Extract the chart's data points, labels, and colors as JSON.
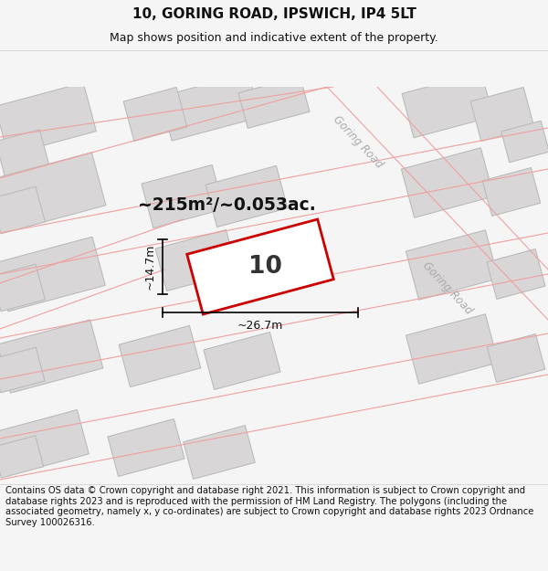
{
  "title": "10, GORING ROAD, IPSWICH, IP4 5LT",
  "subtitle": "Map shows position and indicative extent of the property.",
  "area_text": "~215m²/~0.053ac.",
  "property_number": "10",
  "width_label": "~26.7m",
  "height_label": "~14.7m",
  "road_label_top": "Goring Road",
  "road_label_bottom": "Goring Road",
  "footer_text": "Contains OS data © Crown copyright and database right 2021. This information is subject to Crown copyright and database rights 2023 and is reproduced with the permission of HM Land Registry. The polygons (including the associated geometry, namely x, y co-ordinates) are subject to Crown copyright and database rights 2023 Ordnance Survey 100026316.",
  "bg_color": "#f5f5f5",
  "map_bg": "#eeecec",
  "building_fill": "#d8d6d6",
  "building_edge": "#bbbbbb",
  "road_line_color": "#f0a0a0",
  "road_fill": "#f5f3f3",
  "property_fill": "#ffffff",
  "property_edge": "#cc0000",
  "title_fontsize": 11,
  "subtitle_fontsize": 9,
  "footer_fontsize": 7.2
}
